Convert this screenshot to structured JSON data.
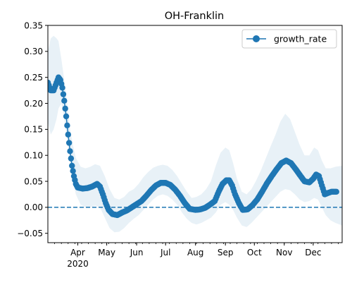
{
  "chart_data": {
    "type": "line",
    "title": "OH-Franklin",
    "xlabel": "",
    "ylabel": "",
    "ylim": [
      -0.068,
      0.35
    ],
    "xlim": [
      "2020-03-01",
      "2020-12-31"
    ],
    "grid": false,
    "legend": {
      "placement": "top-right",
      "entries": [
        "growth_rate"
      ]
    },
    "colors": {
      "series": "#1f77b4",
      "band": "#1f77b4",
      "reference": "#1f77b4"
    },
    "y_ticks": [
      {
        "value": 0.35,
        "label": "0.35"
      },
      {
        "value": 0.3,
        "label": "0.30"
      },
      {
        "value": 0.25,
        "label": "0.25"
      },
      {
        "value": 0.2,
        "label": "0.20"
      },
      {
        "value": 0.15,
        "label": "0.15"
      },
      {
        "value": 0.1,
        "label": "0.10"
      },
      {
        "value": 0.05,
        "label": "0.05"
      },
      {
        "value": 0.0,
        "label": "0.00"
      },
      {
        "value": -0.05,
        "label": "−0.05"
      }
    ],
    "x_ticks": [
      {
        "date": "2020-04-01",
        "label": "Apr",
        "sublabel": "2020"
      },
      {
        "date": "2020-05-01",
        "label": "May",
        "sublabel": ""
      },
      {
        "date": "2020-06-01",
        "label": "Jun",
        "sublabel": ""
      },
      {
        "date": "2020-07-01",
        "label": "Jul",
        "sublabel": ""
      },
      {
        "date": "2020-08-01",
        "label": "Aug",
        "sublabel": ""
      },
      {
        "date": "2020-09-01",
        "label": "Sep",
        "sublabel": ""
      },
      {
        "date": "2020-10-01",
        "label": "Oct",
        "sublabel": ""
      },
      {
        "date": "2020-11-01",
        "label": "Nov",
        "sublabel": ""
      },
      {
        "date": "2020-12-01",
        "label": "Dec",
        "sublabel": ""
      }
    ],
    "reference_line": {
      "y": 0.0,
      "style": "dashed"
    },
    "series": [
      {
        "name": "growth_rate",
        "points": [
          [
            "2020-03-01",
            0.24
          ],
          [
            "2020-03-04",
            0.225
          ],
          [
            "2020-03-07",
            0.225
          ],
          [
            "2020-03-10",
            0.24
          ],
          [
            "2020-03-12",
            0.25
          ],
          [
            "2020-03-14",
            0.245
          ],
          [
            "2020-03-16",
            0.23
          ],
          [
            "2020-03-18",
            0.205
          ],
          [
            "2020-03-20",
            0.175
          ],
          [
            "2020-03-22",
            0.14
          ],
          [
            "2020-03-24",
            0.108
          ],
          [
            "2020-03-26",
            0.08
          ],
          [
            "2020-03-28",
            0.06
          ],
          [
            "2020-03-30",
            0.045
          ],
          [
            "2020-04-01",
            0.038
          ],
          [
            "2020-04-06",
            0.036
          ],
          [
            "2020-04-11",
            0.037
          ],
          [
            "2020-04-16",
            0.04
          ],
          [
            "2020-04-21",
            0.045
          ],
          [
            "2020-04-24",
            0.04
          ],
          [
            "2020-04-27",
            0.025
          ],
          [
            "2020-04-30",
            0.008
          ],
          [
            "2020-05-03",
            -0.005
          ],
          [
            "2020-05-07",
            -0.013
          ],
          [
            "2020-05-12",
            -0.015
          ],
          [
            "2020-05-17",
            -0.01
          ],
          [
            "2020-05-22",
            -0.006
          ],
          [
            "2020-05-27",
            0.0
          ],
          [
            "2020-06-01",
            0.006
          ],
          [
            "2020-06-06",
            0.012
          ],
          [
            "2020-06-11",
            0.022
          ],
          [
            "2020-06-16",
            0.033
          ],
          [
            "2020-06-21",
            0.042
          ],
          [
            "2020-06-26",
            0.047
          ],
          [
            "2020-07-01",
            0.047
          ],
          [
            "2020-07-06",
            0.043
          ],
          [
            "2020-07-11",
            0.034
          ],
          [
            "2020-07-16",
            0.022
          ],
          [
            "2020-07-21",
            0.008
          ],
          [
            "2020-07-26",
            -0.003
          ],
          [
            "2020-08-01",
            -0.005
          ],
          [
            "2020-08-06",
            -0.004
          ],
          [
            "2020-08-11",
            -0.001
          ],
          [
            "2020-08-16",
            0.005
          ],
          [
            "2020-08-21",
            0.012
          ],
          [
            "2020-08-25",
            0.03
          ],
          [
            "2020-08-29",
            0.045
          ],
          [
            "2020-09-02",
            0.052
          ],
          [
            "2020-09-05",
            0.052
          ],
          [
            "2020-09-08",
            0.042
          ],
          [
            "2020-09-11",
            0.025
          ],
          [
            "2020-09-15",
            0.008
          ],
          [
            "2020-09-19",
            -0.005
          ],
          [
            "2020-09-24",
            -0.004
          ],
          [
            "2020-09-29",
            0.004
          ],
          [
            "2020-10-04",
            0.015
          ],
          [
            "2020-10-09",
            0.03
          ],
          [
            "2020-10-14",
            0.046
          ],
          [
            "2020-10-19",
            0.06
          ],
          [
            "2020-10-24",
            0.073
          ],
          [
            "2020-10-29",
            0.085
          ],
          [
            "2020-11-03",
            0.09
          ],
          [
            "2020-11-08",
            0.085
          ],
          [
            "2020-11-13",
            0.073
          ],
          [
            "2020-11-18",
            0.06
          ],
          [
            "2020-11-22",
            0.05
          ],
          [
            "2020-11-27",
            0.048
          ],
          [
            "2020-12-01",
            0.055
          ],
          [
            "2020-12-04",
            0.063
          ],
          [
            "2020-12-07",
            0.06
          ],
          [
            "2020-12-10",
            0.042
          ],
          [
            "2020-12-13",
            0.025
          ],
          [
            "2020-12-17",
            0.028
          ],
          [
            "2020-12-20",
            0.03
          ],
          [
            "2020-12-25",
            0.03
          ]
        ]
      }
    ],
    "band": [
      [
        "2020-03-01",
        0.165,
        0.3
      ],
      [
        "2020-03-04",
        0.14,
        0.325
      ],
      [
        "2020-03-07",
        0.15,
        0.33
      ],
      [
        "2020-03-10",
        0.17,
        0.325
      ],
      [
        "2020-03-12",
        0.19,
        0.32
      ],
      [
        "2020-03-15",
        0.2,
        0.285
      ],
      [
        "2020-03-18",
        0.17,
        0.245
      ],
      [
        "2020-03-21",
        0.13,
        0.2
      ],
      [
        "2020-03-24",
        0.085,
        0.15
      ],
      [
        "2020-03-27",
        0.05,
        0.12
      ],
      [
        "2020-03-30",
        0.025,
        0.095
      ],
      [
        "2020-04-04",
        0.005,
        0.078
      ],
      [
        "2020-04-09",
        0.0,
        0.075
      ],
      [
        "2020-04-14",
        0.0,
        0.078
      ],
      [
        "2020-04-19",
        0.003,
        0.083
      ],
      [
        "2020-04-24",
        0.0,
        0.08
      ],
      [
        "2020-04-29",
        -0.02,
        0.06
      ],
      [
        "2020-05-04",
        -0.04,
        0.035
      ],
      [
        "2020-05-09",
        -0.048,
        0.018
      ],
      [
        "2020-05-14",
        -0.047,
        0.015
      ],
      [
        "2020-05-19",
        -0.04,
        0.02
      ],
      [
        "2020-05-24",
        -0.03,
        0.03
      ],
      [
        "2020-05-29",
        -0.022,
        0.035
      ],
      [
        "2020-06-03",
        -0.015,
        0.045
      ],
      [
        "2020-06-08",
        -0.005,
        0.058
      ],
      [
        "2020-06-13",
        0.005,
        0.068
      ],
      [
        "2020-06-18",
        0.015,
        0.076
      ],
      [
        "2020-06-23",
        0.022,
        0.08
      ],
      [
        "2020-06-28",
        0.025,
        0.082
      ],
      [
        "2020-07-03",
        0.022,
        0.08
      ],
      [
        "2020-07-08",
        0.015,
        0.072
      ],
      [
        "2020-07-13",
        0.005,
        0.06
      ],
      [
        "2020-07-18",
        -0.01,
        0.045
      ],
      [
        "2020-07-23",
        -0.022,
        0.03
      ],
      [
        "2020-07-28",
        -0.03,
        0.018
      ],
      [
        "2020-08-02",
        -0.033,
        0.02
      ],
      [
        "2020-08-07",
        -0.03,
        0.025
      ],
      [
        "2020-08-12",
        -0.025,
        0.035
      ],
      [
        "2020-08-17",
        -0.02,
        0.05
      ],
      [
        "2020-08-22",
        -0.01,
        0.08
      ],
      [
        "2020-08-27",
        0.005,
        0.105
      ],
      [
        "2020-09-01",
        0.01,
        0.115
      ],
      [
        "2020-09-05",
        0.005,
        0.11
      ],
      [
        "2020-09-09",
        -0.005,
        0.085
      ],
      [
        "2020-09-13",
        -0.02,
        0.055
      ],
      [
        "2020-09-18",
        -0.035,
        0.03
      ],
      [
        "2020-09-23",
        -0.038,
        0.025
      ],
      [
        "2020-09-28",
        -0.03,
        0.035
      ],
      [
        "2020-10-03",
        -0.02,
        0.052
      ],
      [
        "2020-10-08",
        -0.01,
        0.072
      ],
      [
        "2020-10-13",
        0.0,
        0.095
      ],
      [
        "2020-10-18",
        0.01,
        0.118
      ],
      [
        "2020-10-23",
        0.02,
        0.14
      ],
      [
        "2020-10-28",
        0.03,
        0.165
      ],
      [
        "2020-11-02",
        0.035,
        0.18
      ],
      [
        "2020-11-07",
        0.033,
        0.17
      ],
      [
        "2020-11-12",
        0.025,
        0.145
      ],
      [
        "2020-11-17",
        0.015,
        0.12
      ],
      [
        "2020-11-22",
        0.01,
        0.1
      ],
      [
        "2020-11-27",
        0.012,
        0.1
      ],
      [
        "2020-12-02",
        0.018,
        0.115
      ],
      [
        "2020-12-06",
        0.015,
        0.11
      ],
      [
        "2020-12-10",
        0.0,
        0.09
      ],
      [
        "2020-12-14",
        -0.015,
        0.075
      ],
      [
        "2020-12-19",
        -0.025,
        0.075
      ],
      [
        "2020-12-24",
        -0.03,
        0.078
      ],
      [
        "2020-12-31",
        -0.035,
        0.08
      ]
    ]
  }
}
